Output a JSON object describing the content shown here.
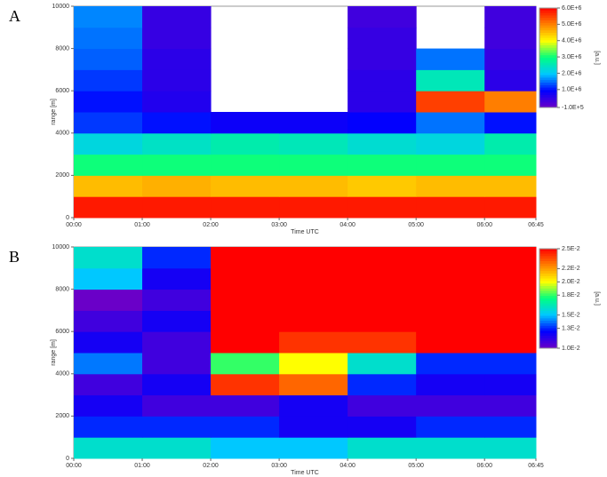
{
  "chart_data": [
    {
      "type": "heatmap",
      "panel_label": "A",
      "xlabel": "Time UTC",
      "ylabel": "range [m]",
      "zlabel": "[a.u.]",
      "xlim": [
        0,
        6.75
      ],
      "ylim": [
        0,
        10000
      ],
      "xticks": [
        {
          "value": 0,
          "label": "00:00"
        },
        {
          "value": 1,
          "label": "01:00"
        },
        {
          "value": 2,
          "label": "02:00"
        },
        {
          "value": 3,
          "label": "03:00"
        },
        {
          "value": 4,
          "label": "04:00"
        },
        {
          "value": 5,
          "label": "05:00"
        },
        {
          "value": 6,
          "label": "06:00"
        },
        {
          "value": 6.75,
          "label": "06:45"
        }
      ],
      "yticks": [
        0,
        2000,
        4000,
        6000,
        8000,
        10000
      ],
      "xbins": [
        0,
        1,
        2,
        3,
        4,
        5,
        6,
        6.75
      ],
      "ybins": [
        0,
        1000,
        2000,
        3000,
        4000,
        5000,
        6000,
        7000,
        8000,
        9000,
        10000
      ],
      "zlim": [
        -100000,
        6000000
      ],
      "zticks": [
        {
          "value": 6000000,
          "label": "6.0E+6"
        },
        {
          "value": 5000000,
          "label": "5.0E+6"
        },
        {
          "value": 4000000,
          "label": "4.0E+6"
        },
        {
          "value": 3000000,
          "label": "3.0E+6"
        },
        {
          "value": 2000000,
          "label": "2.0E+6"
        },
        {
          "value": 1000000,
          "label": "1.0E+6"
        },
        {
          "value": -100000,
          "label": "-1.0E+5"
        }
      ],
      "colormap": [
        "#6a00c8",
        "#0000ff",
        "#00c8ff",
        "#00ff80",
        "#ffff00",
        "#ff8000",
        "#ff0000"
      ],
      "z": [
        [
          5800000,
          5800000,
          5800000,
          5800000,
          5800000,
          5800000,
          5800000
        ],
        [
          4500000,
          4600000,
          4500000,
          4500000,
          4400000,
          4500000,
          4500000
        ],
        [
          3000000,
          3000000,
          3000000,
          3000000,
          3000000,
          3000000,
          3000000
        ],
        [
          2200000,
          2400000,
          2600000,
          2500000,
          2300000,
          2200000,
          2600000
        ],
        [
          1200000,
          1000000,
          800000,
          800000,
          900000,
          1500000,
          1000000
        ],
        [
          1000000,
          600000,
          null,
          null,
          500000,
          5500000,
          5000000
        ],
        [
          1200000,
          500000,
          null,
          null,
          500000,
          2500000,
          500000
        ],
        [
          1400000,
          500000,
          null,
          null,
          400000,
          1500000,
          400000
        ],
        [
          1500000,
          400000,
          null,
          null,
          400000,
          null,
          300000
        ],
        [
          1600000,
          400000,
          null,
          null,
          300000,
          null,
          300000
        ]
      ]
    },
    {
      "type": "heatmap",
      "panel_label": "B",
      "xlabel": "Time UTC",
      "ylabel": "range [m]",
      "zlabel": "[a.u.]",
      "xlim": [
        0,
        6.75
      ],
      "ylim": [
        0,
        10000
      ],
      "xticks": [
        {
          "value": 0,
          "label": "00:00"
        },
        {
          "value": 1,
          "label": "01:00"
        },
        {
          "value": 2,
          "label": "02:00"
        },
        {
          "value": 3,
          "label": "03:00"
        },
        {
          "value": 4,
          "label": "04:00"
        },
        {
          "value": 5,
          "label": "05:00"
        },
        {
          "value": 6,
          "label": "06:00"
        },
        {
          "value": 6.75,
          "label": "06:45"
        }
      ],
      "yticks": [
        0,
        2000,
        4000,
        6000,
        8000,
        10000
      ],
      "xbins": [
        0,
        1,
        2,
        3,
        4,
        5,
        6,
        6.75
      ],
      "ybins": [
        0,
        1000,
        2000,
        3000,
        4000,
        5000,
        6000,
        7000,
        8000,
        9000,
        10000
      ],
      "zlim": [
        0.01,
        0.025
      ],
      "zticks": [
        {
          "value": 0.025,
          "label": "2.5E-2"
        },
        {
          "value": 0.022,
          "label": "2.2E-2"
        },
        {
          "value": 0.02,
          "label": "2.0E-2"
        },
        {
          "value": 0.018,
          "label": "1.8E-2"
        },
        {
          "value": 0.015,
          "label": "1.5E-2"
        },
        {
          "value": 0.013,
          "label": "1.3E-2"
        },
        {
          "value": 0.01,
          "label": "1.0E-2"
        }
      ],
      "colormap": [
        "#6a00c8",
        "#0000ff",
        "#00c8ff",
        "#00ff80",
        "#ffff00",
        "#ff8000",
        "#ff0000"
      ],
      "z": [
        [
          0.016,
          0.016,
          0.015,
          0.015,
          0.016,
          0.016,
          0.016
        ],
        [
          0.013,
          0.013,
          0.013,
          0.012,
          0.012,
          0.013,
          0.013
        ],
        [
          0.012,
          0.011,
          0.011,
          0.012,
          0.011,
          0.011,
          0.011
        ],
        [
          0.011,
          0.012,
          0.024,
          0.023,
          0.013,
          0.012,
          0.012
        ],
        [
          0.014,
          0.011,
          0.018,
          0.02,
          0.016,
          0.013,
          0.013
        ],
        [
          0.012,
          0.011,
          0.025,
          0.024,
          0.024,
          0.025,
          0.025
        ],
        [
          0.011,
          0.012,
          0.025,
          0.025,
          0.025,
          0.025,
          0.025
        ],
        [
          0.01,
          0.011,
          0.025,
          0.025,
          0.025,
          0.025,
          0.025
        ],
        [
          0.015,
          0.012,
          0.025,
          0.025,
          0.025,
          0.025,
          0.025
        ],
        [
          0.016,
          0.013,
          0.025,
          0.025,
          0.025,
          0.025,
          0.025
        ]
      ]
    }
  ]
}
